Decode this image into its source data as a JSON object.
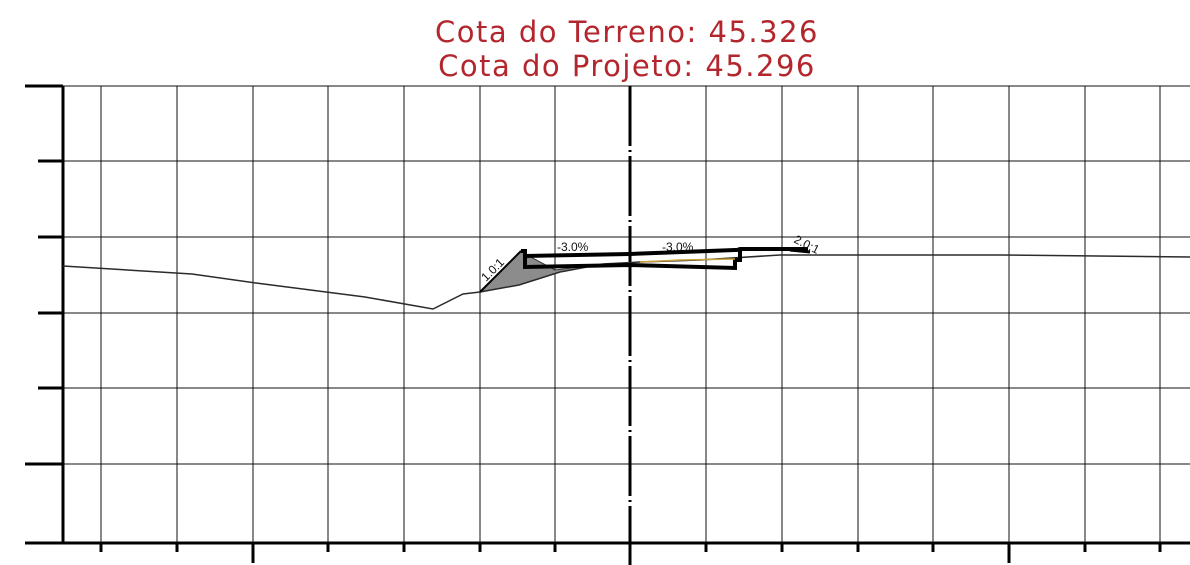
{
  "title": {
    "terrain_label": "Cota do Terreno: 45.326",
    "project_label": "Cota do Projeto: 45.296"
  },
  "labels": {
    "slope_left": "1.0:1",
    "grade_left": "-3.0%",
    "grade_right": "-3.0%",
    "slope_right": "2.0:1"
  },
  "colors": {
    "title": "#b3262d",
    "grid": "#111111",
    "terrain": "#2b2b2b",
    "fill": "#8c8c8c",
    "pavement": "#000000",
    "highlight": "#c8a23a"
  }
}
